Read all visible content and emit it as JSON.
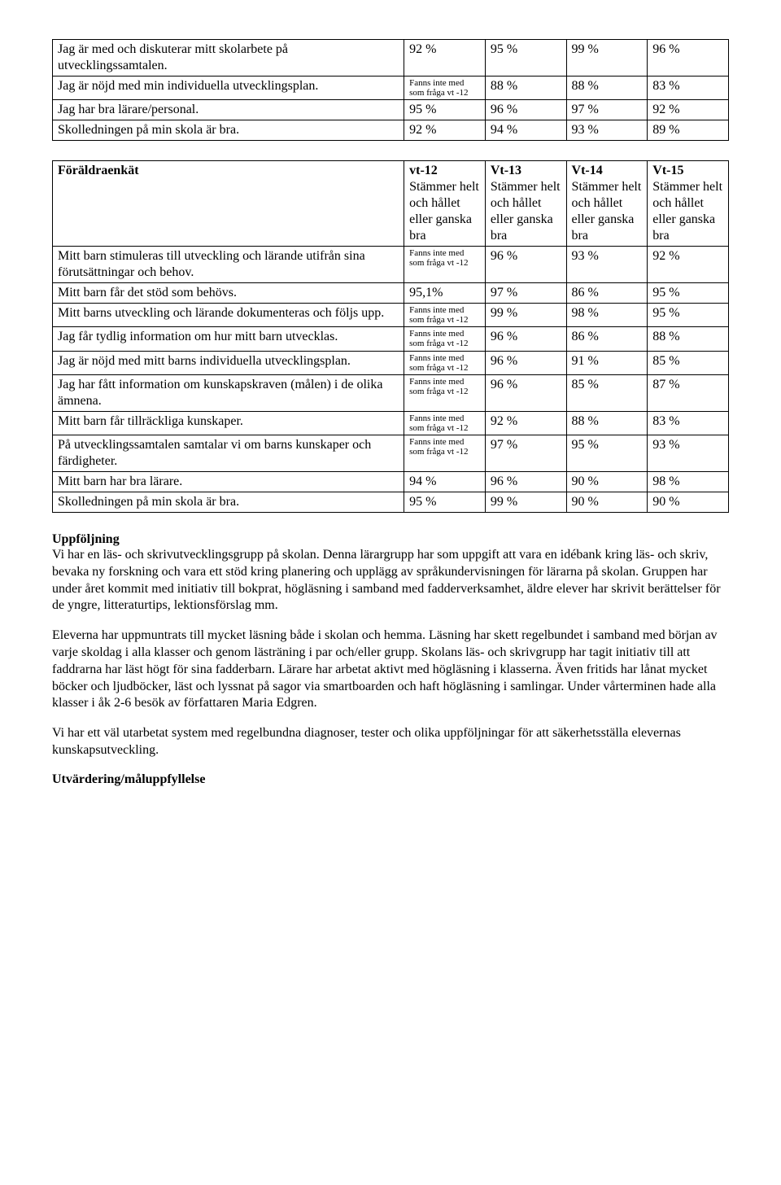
{
  "table1": {
    "rows": [
      {
        "label": "Jag är med och diskuterar mitt skolarbete på utvecklingssamtalen.",
        "c0": "92 %",
        "c1": "95 %",
        "c2": "99 %",
        "c3": "96 %"
      },
      {
        "label": "Jag är nöjd med min individuella utvecklingsplan.",
        "c0": "Fanns inte med som fråga vt -12",
        "c0small": true,
        "c1": "88 %",
        "c2": "88 %",
        "c3": "83 %"
      },
      {
        "label": "Jag har bra lärare/personal.",
        "c0": "95 %",
        "c1": "96 %",
        "c2": "97 %",
        "c3": "92 %"
      },
      {
        "label": "Skolledningen på min skola är bra.",
        "c0": "92 %",
        "c1": "94 %",
        "c2": "93 %",
        "c3": "89 %"
      }
    ]
  },
  "table2": {
    "headers": {
      "h0": "Föräldraenkät",
      "h1_title": "vt-12",
      "h1_sub": "Stämmer helt och hållet eller ganska bra",
      "h2_title": "Vt-13",
      "h2_sub": "Stämmer helt och hållet eller ganska bra",
      "h3_title": "Vt-14",
      "h3_sub": "Stämmer helt och hållet eller ganska bra",
      "h4_title": "Vt-15",
      "h4_sub": "Stämmer helt och hållet eller ganska bra"
    },
    "rows": [
      {
        "label": "Mitt barn stimuleras till utveckling och lärande utifrån sina förutsättningar och behov.",
        "c0": "Fanns inte med som fråga vt -12",
        "c0small": true,
        "c1": "96 %",
        "c2": "93 %",
        "c3": "92 %"
      },
      {
        "label": "Mitt barn får det stöd som behövs.",
        "c0": "95,1%",
        "c1": "97 %",
        "c2": "86 %",
        "c3": "95 %"
      },
      {
        "label": "Mitt barns utveckling och lärande dokumenteras och följs upp.",
        "c0": "Fanns inte med som fråga vt -12",
        "c0small": true,
        "c1": "99 %",
        "c2": "98 %",
        "c3": "95 %"
      },
      {
        "label": "Jag får tydlig information om hur mitt barn utvecklas.",
        "c0": "Fanns inte med som fråga vt -12",
        "c0small": true,
        "c1": "96 %",
        "c2": "86 %",
        "c3": "88 %"
      },
      {
        "label": "Jag är nöjd med mitt barns individuella utvecklingsplan.",
        "c0": "Fanns inte med som fråga vt -12",
        "c0small": true,
        "c1": "96 %",
        "c2": "91 %",
        "c3": "85 %"
      },
      {
        "label": "Jag har fått information om kunskapskraven (målen) i de olika ämnena.",
        "c0": "Fanns inte med som fråga vt -12",
        "c0small": true,
        "c1": "96 %",
        "c2": "85 %",
        "c3": "87 %"
      },
      {
        "label": "Mitt barn får tillräckliga kunskaper.",
        "c0": "Fanns inte med som fråga vt -12",
        "c0small": true,
        "c1": "92 %",
        "c2": "88 %",
        "c3": "83 %"
      },
      {
        "label": "På utvecklingssamtalen samtalar vi om barns kunskaper och färdigheter.",
        "c0": "Fanns inte med som fråga vt -12",
        "c0small": true,
        "c1": "97 %",
        "c2": "95 %",
        "c3": "93 %"
      },
      {
        "label": "Mitt barn har bra lärare.",
        "c0": "94 %",
        "c1": "96 %",
        "c2": "90 %",
        "c3": "98 %"
      },
      {
        "label": "Skolledningen på min skola är bra.",
        "c0": "95 %",
        "c1": "99 %",
        "c2": "90 %",
        "c3": "90 %"
      }
    ]
  },
  "section1": {
    "heading": "Uppföljning",
    "p1": "Vi har en läs- och skrivutvecklingsgrupp på skolan. Denna lärargrupp har som uppgift att vara en idébank kring läs- och skriv, bevaka ny forskning och vara ett stöd kring planering och upplägg av språkundervisningen för lärarna på skolan. Gruppen har under året kommit med initiativ till bokprat, högläsning i samband med fadderverksamhet, äldre elever har skrivit berättelser för de yngre, litteraturtips, lektionsförslag mm.",
    "p2": "Eleverna har uppmuntrats till mycket läsning både i skolan och hemma. Läsning har skett regelbundet i samband med början av varje skoldag i alla klasser och genom lästräning i par och/eller grupp. Skolans läs- och skrivgrupp har tagit initiativ till att faddrarna har läst högt för sina fadderbarn.  Lärare har arbetat aktivt med högläsning i klasserna. Även fritids har lånat mycket böcker och ljudböcker, läst och lyssnat på sagor via smartboarden och haft högläsning i samlingar. Under vårterminen hade alla klasser i åk 2-6 besök av författaren Maria Edgren.",
    "p3": "Vi har ett väl utarbetat system med regelbundna diagnoser, tester och olika uppföljningar för att säkerhetsställa elevernas kunskapsutveckling."
  },
  "section2": {
    "heading": "Utvärdering/måluppfyllelse"
  }
}
